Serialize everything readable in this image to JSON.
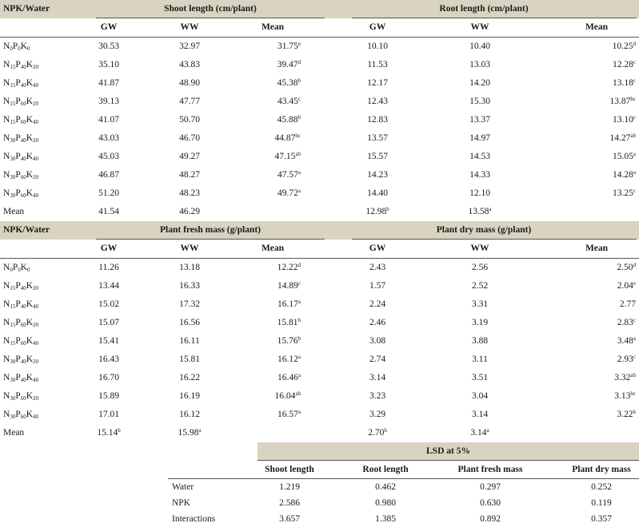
{
  "sections": [
    {
      "id": "length",
      "row_header": "NPK/Water",
      "left_group": "Shoot length (cm/plant)",
      "right_group": "Root length (cm/plant)",
      "cols": [
        "GW",
        "WW",
        "Mean",
        "GW",
        "WW",
        "Mean"
      ],
      "rows": [
        {
          "n": "0",
          "p": "0",
          "k": "0",
          "v": [
            "30.53",
            "32.97",
            "31.75",
            "10.10",
            "10.40",
            "10.25"
          ],
          "s": [
            "",
            "",
            "e",
            "",
            "",
            "d"
          ]
        },
        {
          "n": "15",
          "p": "40",
          "k": "20",
          "v": [
            "35.10",
            "43.83",
            "39.47",
            "11.53",
            "13.03",
            "12.28"
          ],
          "s": [
            "",
            "",
            "d",
            "",
            "",
            "c"
          ]
        },
        {
          "n": "15",
          "p": "40",
          "k": "40",
          "v": [
            "41.87",
            "48.90",
            "45.38",
            "12.17",
            "14.20",
            "13.18"
          ],
          "s": [
            "",
            "",
            "b",
            "",
            "",
            "c"
          ]
        },
        {
          "n": "15",
          "p": "60",
          "k": "20",
          "v": [
            "39.13",
            "47.77",
            "43.45",
            "12.43",
            "15.30",
            "13.87"
          ],
          "s": [
            "",
            "",
            "c",
            "",
            "",
            "bc"
          ]
        },
        {
          "n": "15",
          "p": "60",
          "k": "40",
          "v": [
            "41.07",
            "50.70",
            "45.88",
            "12.83",
            "13.37",
            "13.10"
          ],
          "s": [
            "",
            "",
            "b",
            "",
            "",
            "c"
          ]
        },
        {
          "n": "30",
          "p": "40",
          "k": "20",
          "v": [
            "43.03",
            "46.70",
            "44.87",
            "13.57",
            "14.97",
            "14.27"
          ],
          "s": [
            "",
            "",
            "bc",
            "",
            "",
            "ab"
          ]
        },
        {
          "n": "30",
          "p": "40",
          "k": "40",
          "v": [
            "45.03",
            "49.27",
            "47.15",
            "15.57",
            "14.53",
            "15.05"
          ],
          "s": [
            "",
            "",
            "ab",
            "",
            "",
            "a"
          ]
        },
        {
          "n": "30",
          "p": "60",
          "k": "20",
          "v": [
            "46.87",
            "48.27",
            "47.57",
            "14.23",
            "14.33",
            "14.28"
          ],
          "s": [
            "",
            "",
            "a",
            "",
            "",
            "a"
          ]
        },
        {
          "n": "30",
          "p": "60",
          "k": "40",
          "v": [
            "51.20",
            "48.23",
            "49.72",
            "14.40",
            "12.10",
            "13.25"
          ],
          "s": [
            "",
            "",
            "a",
            "",
            "",
            "c"
          ]
        }
      ],
      "mean_label": "Mean",
      "mean": {
        "v": [
          "41.54",
          "46.29",
          "",
          "12.98",
          "13.58",
          ""
        ],
        "s": [
          "",
          "",
          "",
          "b",
          "a",
          ""
        ]
      }
    },
    {
      "id": "mass",
      "row_header": "NPK/Water",
      "left_group": "Plant fresh mass (g/plant)",
      "right_group": "Plant dry mass (g/plant)",
      "cols": [
        "GW",
        "WW",
        "Mean",
        "GW",
        "WW",
        "Mean"
      ],
      "rows": [
        {
          "n": "0",
          "p": "0",
          "k": "0",
          "v": [
            "11.26",
            "13.18",
            "12.22",
            "2.43",
            "2.56",
            "2.50"
          ],
          "s": [
            "",
            "",
            "d",
            "",
            "",
            "d"
          ]
        },
        {
          "n": "15",
          "p": "40",
          "k": "20",
          "v": [
            "13.44",
            "16.33",
            "14.89",
            "1.57",
            "2.52",
            "2.04"
          ],
          "s": [
            "",
            "",
            "c",
            "",
            "",
            "e"
          ]
        },
        {
          "n": "15",
          "p": "40",
          "k": "40",
          "v": [
            "15.02",
            "17.32",
            "16.17",
            "2.24",
            "3.31",
            "2.77"
          ],
          "s": [
            "",
            "",
            "a",
            "",
            "",
            ""
          ]
        },
        {
          "n": "15",
          "p": "60",
          "k": "20",
          "v": [
            "15.07",
            "16.56",
            "15.81",
            "2.46",
            "3.19",
            "2.83"
          ],
          "s": [
            "",
            "",
            "b",
            "",
            "",
            "c"
          ]
        },
        {
          "n": "15",
          "p": "60",
          "k": "40",
          "v": [
            "15.41",
            "16.11",
            "15.76",
            "3.08",
            "3.88",
            "3.48"
          ],
          "s": [
            "",
            "",
            "b",
            "",
            "",
            "a"
          ]
        },
        {
          "n": "30",
          "p": "40",
          "k": "20",
          "v": [
            "16.43",
            "15.81",
            "16.12",
            "2.74",
            "3.11",
            "2.93"
          ],
          "s": [
            "",
            "",
            "a",
            "",
            "",
            "c"
          ]
        },
        {
          "n": "30",
          "p": "40",
          "k": "40",
          "v": [
            "16.70",
            "16.22",
            "16.46",
            "3.14",
            "3.51",
            "3.32"
          ],
          "s": [
            "",
            "",
            "a",
            "",
            "",
            "ab"
          ]
        },
        {
          "n": "30",
          "p": "60",
          "k": "20",
          "v": [
            "15.89",
            "16.19",
            "16.04",
            "3.23",
            "3.04",
            "3.13"
          ],
          "s": [
            "",
            "",
            "ab",
            "",
            "",
            "bc"
          ]
        },
        {
          "n": "30",
          "p": "60",
          "k": "40",
          "v": [
            "17.01",
            "16.12",
            "16.57",
            "3.29",
            "3.14",
            "3.22"
          ],
          "s": [
            "",
            "",
            "a",
            "",
            "",
            "b"
          ]
        }
      ],
      "mean_label": "Mean",
      "mean": {
        "v": [
          "15.14",
          "15.98",
          "",
          "2.70",
          "3.14",
          ""
        ],
        "s": [
          "b",
          "a",
          "",
          "b",
          "a",
          ""
        ]
      }
    }
  ],
  "lsd": {
    "title": "LSD at 5%",
    "cols": [
      "Shoot length",
      "Root length",
      "Plant fresh mass",
      "Plant dry mass"
    ],
    "rows": [
      {
        "label": "Water",
        "v": [
          "1.219",
          "0.462",
          "0.297",
          "0.252"
        ]
      },
      {
        "label": "NPK",
        "v": [
          "2.586",
          "0.980",
          "0.630",
          "0.119"
        ]
      },
      {
        "label": "Interactions",
        "v": [
          "3.657",
          "1.385",
          "0.892",
          "0.357"
        ]
      }
    ]
  }
}
